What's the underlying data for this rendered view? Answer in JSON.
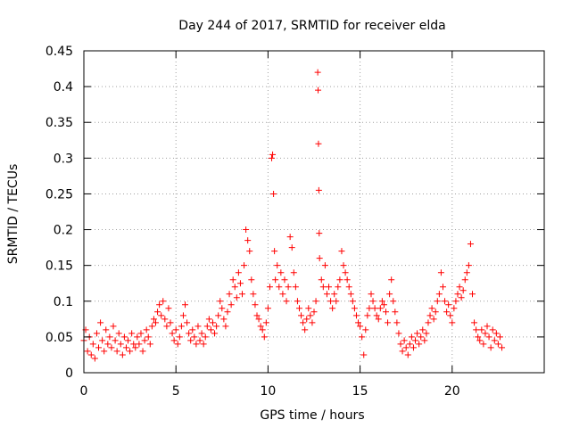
{
  "chart_data": {
    "type": "scatter",
    "title": "Day 244 of 2017, SRMTID for receiver elda",
    "xlabel": "GPS time / hours",
    "ylabel": "SRMTID / TECUs",
    "xlim": [
      0,
      25
    ],
    "ylim": [
      0,
      0.45
    ],
    "grid": true,
    "marker": "+",
    "color": "#ff0000",
    "xticks": [
      {
        "value": 0,
        "label": "0"
      },
      {
        "value": 5,
        "label": "5"
      },
      {
        "value": 10,
        "label": "10"
      },
      {
        "value": 15,
        "label": "15"
      },
      {
        "value": 20,
        "label": "20"
      }
    ],
    "yticks": [
      {
        "value": 0,
        "label": "0"
      },
      {
        "value": 0.05,
        "label": "0.05"
      },
      {
        "value": 0.1,
        "label": "0.1"
      },
      {
        "value": 0.15,
        "label": "0.15"
      },
      {
        "value": 0.2,
        "label": "0.2"
      },
      {
        "value": 0.25,
        "label": "0.25"
      },
      {
        "value": 0.3,
        "label": "0.3"
      },
      {
        "value": 0.35,
        "label": "0.35"
      },
      {
        "value": 0.4,
        "label": "0.4"
      },
      {
        "value": 0.45,
        "label": "0.45"
      }
    ],
    "series": [
      {
        "name": "SRMTID",
        "points": [
          [
            0.0,
            0.045
          ],
          [
            0.1,
            0.06
          ],
          [
            0.2,
            0.03
          ],
          [
            0.3,
            0.05
          ],
          [
            0.4,
            0.025
          ],
          [
            0.5,
            0.04
          ],
          [
            0.6,
            0.02
          ],
          [
            0.7,
            0.055
          ],
          [
            0.8,
            0.035
          ],
          [
            0.9,
            0.07
          ],
          [
            1.0,
            0.045
          ],
          [
            1.1,
            0.03
          ],
          [
            1.2,
            0.06
          ],
          [
            1.3,
            0.04
          ],
          [
            1.4,
            0.05
          ],
          [
            1.5,
            0.035
          ],
          [
            1.6,
            0.065
          ],
          [
            1.7,
            0.045
          ],
          [
            1.8,
            0.03
          ],
          [
            1.9,
            0.055
          ],
          [
            2.0,
            0.04
          ],
          [
            2.1,
            0.025
          ],
          [
            2.2,
            0.05
          ],
          [
            2.3,
            0.035
          ],
          [
            2.4,
            0.045
          ],
          [
            2.5,
            0.03
          ],
          [
            2.6,
            0.055
          ],
          [
            2.7,
            0.04
          ],
          [
            2.8,
            0.035
          ],
          [
            2.9,
            0.05
          ],
          [
            3.0,
            0.04
          ],
          [
            3.1,
            0.055
          ],
          [
            3.2,
            0.03
          ],
          [
            3.3,
            0.045
          ],
          [
            3.4,
            0.06
          ],
          [
            3.5,
            0.05
          ],
          [
            3.6,
            0.04
          ],
          [
            3.7,
            0.065
          ],
          [
            3.8,
            0.075
          ],
          [
            3.9,
            0.07
          ],
          [
            4.0,
            0.085
          ],
          [
            4.1,
            0.095
          ],
          [
            4.2,
            0.08
          ],
          [
            4.3,
            0.1
          ],
          [
            4.4,
            0.075
          ],
          [
            4.5,
            0.065
          ],
          [
            4.6,
            0.09
          ],
          [
            4.7,
            0.07
          ],
          [
            4.8,
            0.055
          ],
          [
            4.9,
            0.045
          ],
          [
            5.0,
            0.06
          ],
          [
            5.1,
            0.04
          ],
          [
            5.2,
            0.05
          ],
          [
            5.3,
            0.065
          ],
          [
            5.4,
            0.08
          ],
          [
            5.5,
            0.095
          ],
          [
            5.6,
            0.07
          ],
          [
            5.7,
            0.055
          ],
          [
            5.8,
            0.045
          ],
          [
            5.9,
            0.06
          ],
          [
            6.0,
            0.05
          ],
          [
            6.1,
            0.04
          ],
          [
            6.2,
            0.065
          ],
          [
            6.3,
            0.045
          ],
          [
            6.4,
            0.055
          ],
          [
            6.5,
            0.04
          ],
          [
            6.6,
            0.05
          ],
          [
            6.7,
            0.065
          ],
          [
            6.8,
            0.075
          ],
          [
            6.9,
            0.06
          ],
          [
            7.0,
            0.07
          ],
          [
            7.1,
            0.055
          ],
          [
            7.2,
            0.065
          ],
          [
            7.3,
            0.08
          ],
          [
            7.4,
            0.1
          ],
          [
            7.5,
            0.09
          ],
          [
            7.6,
            0.075
          ],
          [
            7.7,
            0.065
          ],
          [
            7.8,
            0.085
          ],
          [
            7.9,
            0.11
          ],
          [
            8.0,
            0.095
          ],
          [
            8.1,
            0.13
          ],
          [
            8.2,
            0.12
          ],
          [
            8.3,
            0.105
          ],
          [
            8.4,
            0.14
          ],
          [
            8.5,
            0.125
          ],
          [
            8.6,
            0.11
          ],
          [
            8.7,
            0.15
          ],
          [
            8.8,
            0.2
          ],
          [
            8.9,
            0.185
          ],
          [
            9.0,
            0.17
          ],
          [
            9.1,
            0.13
          ],
          [
            9.2,
            0.11
          ],
          [
            9.3,
            0.095
          ],
          [
            9.4,
            0.08
          ],
          [
            9.5,
            0.075
          ],
          [
            9.6,
            0.065
          ],
          [
            9.7,
            0.06
          ],
          [
            9.8,
            0.05
          ],
          [
            9.9,
            0.07
          ],
          [
            10.0,
            0.09
          ],
          [
            10.1,
            0.12
          ],
          [
            10.2,
            0.3
          ],
          [
            10.25,
            0.305
          ],
          [
            10.3,
            0.25
          ],
          [
            10.35,
            0.17
          ],
          [
            10.4,
            0.13
          ],
          [
            10.5,
            0.15
          ],
          [
            10.6,
            0.12
          ],
          [
            10.7,
            0.14
          ],
          [
            10.8,
            0.11
          ],
          [
            10.9,
            0.13
          ],
          [
            11.0,
            0.1
          ],
          [
            11.1,
            0.12
          ],
          [
            11.2,
            0.19
          ],
          [
            11.3,
            0.175
          ],
          [
            11.4,
            0.14
          ],
          [
            11.5,
            0.12
          ],
          [
            11.6,
            0.1
          ],
          [
            11.7,
            0.09
          ],
          [
            11.8,
            0.08
          ],
          [
            11.9,
            0.07
          ],
          [
            12.0,
            0.06
          ],
          [
            12.1,
            0.075
          ],
          [
            12.2,
            0.09
          ],
          [
            12.3,
            0.08
          ],
          [
            12.4,
            0.07
          ],
          [
            12.5,
            0.085
          ],
          [
            12.6,
            0.1
          ],
          [
            12.7,
            0.42
          ],
          [
            12.72,
            0.395
          ],
          [
            12.74,
            0.32
          ],
          [
            12.76,
            0.255
          ],
          [
            12.78,
            0.195
          ],
          [
            12.8,
            0.16
          ],
          [
            12.9,
            0.13
          ],
          [
            13.0,
            0.12
          ],
          [
            13.1,
            0.15
          ],
          [
            13.2,
            0.11
          ],
          [
            13.3,
            0.12
          ],
          [
            13.4,
            0.1
          ],
          [
            13.5,
            0.09
          ],
          [
            13.6,
            0.11
          ],
          [
            13.7,
            0.1
          ],
          [
            13.8,
            0.12
          ],
          [
            13.9,
            0.13
          ],
          [
            14.0,
            0.17
          ],
          [
            14.1,
            0.15
          ],
          [
            14.2,
            0.14
          ],
          [
            14.3,
            0.13
          ],
          [
            14.4,
            0.12
          ],
          [
            14.5,
            0.11
          ],
          [
            14.6,
            0.1
          ],
          [
            14.7,
            0.09
          ],
          [
            14.8,
            0.08
          ],
          [
            14.9,
            0.07
          ],
          [
            15.0,
            0.065
          ],
          [
            15.1,
            0.05
          ],
          [
            15.2,
            0.025
          ],
          [
            15.3,
            0.06
          ],
          [
            15.4,
            0.08
          ],
          [
            15.5,
            0.09
          ],
          [
            15.6,
            0.11
          ],
          [
            15.7,
            0.1
          ],
          [
            15.8,
            0.09
          ],
          [
            15.9,
            0.08
          ],
          [
            16.0,
            0.075
          ],
          [
            16.1,
            0.09
          ],
          [
            16.2,
            0.1
          ],
          [
            16.3,
            0.095
          ],
          [
            16.4,
            0.085
          ],
          [
            16.5,
            0.07
          ],
          [
            16.6,
            0.11
          ],
          [
            16.7,
            0.13
          ],
          [
            16.8,
            0.1
          ],
          [
            16.9,
            0.085
          ],
          [
            17.0,
            0.07
          ],
          [
            17.1,
            0.055
          ],
          [
            17.2,
            0.04
          ],
          [
            17.3,
            0.03
          ],
          [
            17.4,
            0.045
          ],
          [
            17.5,
            0.035
          ],
          [
            17.6,
            0.025
          ],
          [
            17.7,
            0.04
          ],
          [
            17.8,
            0.05
          ],
          [
            17.9,
            0.035
          ],
          [
            18.0,
            0.045
          ],
          [
            18.1,
            0.055
          ],
          [
            18.2,
            0.04
          ],
          [
            18.3,
            0.05
          ],
          [
            18.4,
            0.06
          ],
          [
            18.5,
            0.045
          ],
          [
            18.6,
            0.055
          ],
          [
            18.7,
            0.07
          ],
          [
            18.8,
            0.08
          ],
          [
            18.9,
            0.09
          ],
          [
            19.0,
            0.075
          ],
          [
            19.1,
            0.085
          ],
          [
            19.2,
            0.1
          ],
          [
            19.3,
            0.11
          ],
          [
            19.4,
            0.14
          ],
          [
            19.5,
            0.12
          ],
          [
            19.6,
            0.1
          ],
          [
            19.7,
            0.085
          ],
          [
            19.8,
            0.095
          ],
          [
            19.9,
            0.08
          ],
          [
            20.0,
            0.07
          ],
          [
            20.1,
            0.09
          ],
          [
            20.2,
            0.1
          ],
          [
            20.3,
            0.11
          ],
          [
            20.4,
            0.12
          ],
          [
            20.5,
            0.105
          ],
          [
            20.6,
            0.115
          ],
          [
            20.7,
            0.13
          ],
          [
            20.8,
            0.14
          ],
          [
            20.9,
            0.15
          ],
          [
            21.0,
            0.18
          ],
          [
            21.1,
            0.11
          ],
          [
            21.2,
            0.07
          ],
          [
            21.3,
            0.06
          ],
          [
            21.4,
            0.05
          ],
          [
            21.5,
            0.045
          ],
          [
            21.6,
            0.06
          ],
          [
            21.7,
            0.04
          ],
          [
            21.8,
            0.055
          ],
          [
            21.9,
            0.065
          ],
          [
            22.0,
            0.05
          ],
          [
            22.1,
            0.035
          ],
          [
            22.2,
            0.06
          ],
          [
            22.3,
            0.045
          ],
          [
            22.4,
            0.055
          ],
          [
            22.5,
            0.04
          ],
          [
            22.6,
            0.05
          ],
          [
            22.7,
            0.035
          ]
        ]
      }
    ]
  }
}
